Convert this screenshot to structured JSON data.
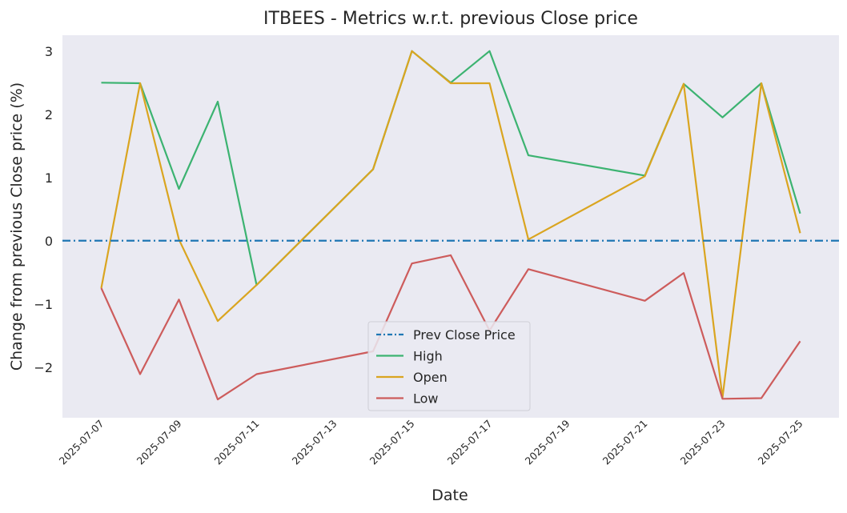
{
  "chart_data": {
    "type": "line",
    "title": "ITBEES - Metrics w.r.t. previous Close price",
    "xlabel": "Date",
    "ylabel": "Change from previous Close price (%)",
    "x": [
      "2025-07-07",
      "2025-07-08",
      "2025-07-09",
      "2025-07-10",
      "2025-07-11",
      "2025-07-14",
      "2025-07-15",
      "2025-07-16",
      "2025-07-17",
      "2025-07-18",
      "2025-07-21",
      "2025-07-22",
      "2025-07-23",
      "2025-07-24",
      "2025-07-25"
    ],
    "xlim": [
      "2025-07-06",
      "2025-07-26"
    ],
    "x_ticks": [
      "2025-07-07",
      "2025-07-09",
      "2025-07-11",
      "2025-07-13",
      "2025-07-15",
      "2025-07-17",
      "2025-07-19",
      "2025-07-21",
      "2025-07-23",
      "2025-07-25"
    ],
    "ylim": [
      -2.8,
      3.25
    ],
    "y_ticks": [
      -2,
      -1,
      0,
      1,
      2,
      3
    ],
    "grid": false,
    "background": "#eaeaf2",
    "reference_line": {
      "name": "Prev Close Price",
      "value": 0,
      "color": "#1f77b4"
    },
    "series": [
      {
        "name": "High",
        "color": "#3cb371",
        "values": [
          2.5,
          2.49,
          0.82,
          2.2,
          -0.7,
          1.13,
          3.0,
          2.5,
          3.0,
          1.35,
          1.03,
          2.48,
          1.95,
          2.49,
          0.43
        ]
      },
      {
        "name": "Open",
        "color": "#daa520",
        "values": [
          -0.75,
          2.49,
          0.02,
          -1.27,
          -0.7,
          1.13,
          3.0,
          2.49,
          2.49,
          0.02,
          1.02,
          2.48,
          -2.48,
          2.49,
          0.12
        ]
      },
      {
        "name": "Low",
        "color": "#cd5c5c",
        "values": [
          -0.75,
          -2.11,
          -0.93,
          -2.51,
          -2.11,
          -1.75,
          -0.36,
          -0.23,
          -1.42,
          -0.45,
          -0.95,
          -0.51,
          -2.5,
          -2.49,
          -1.59
        ]
      }
    ],
    "legend": {
      "placement": "lower-center",
      "entries": [
        "Prev Close Price",
        "High",
        "Open",
        "Low"
      ]
    }
  }
}
